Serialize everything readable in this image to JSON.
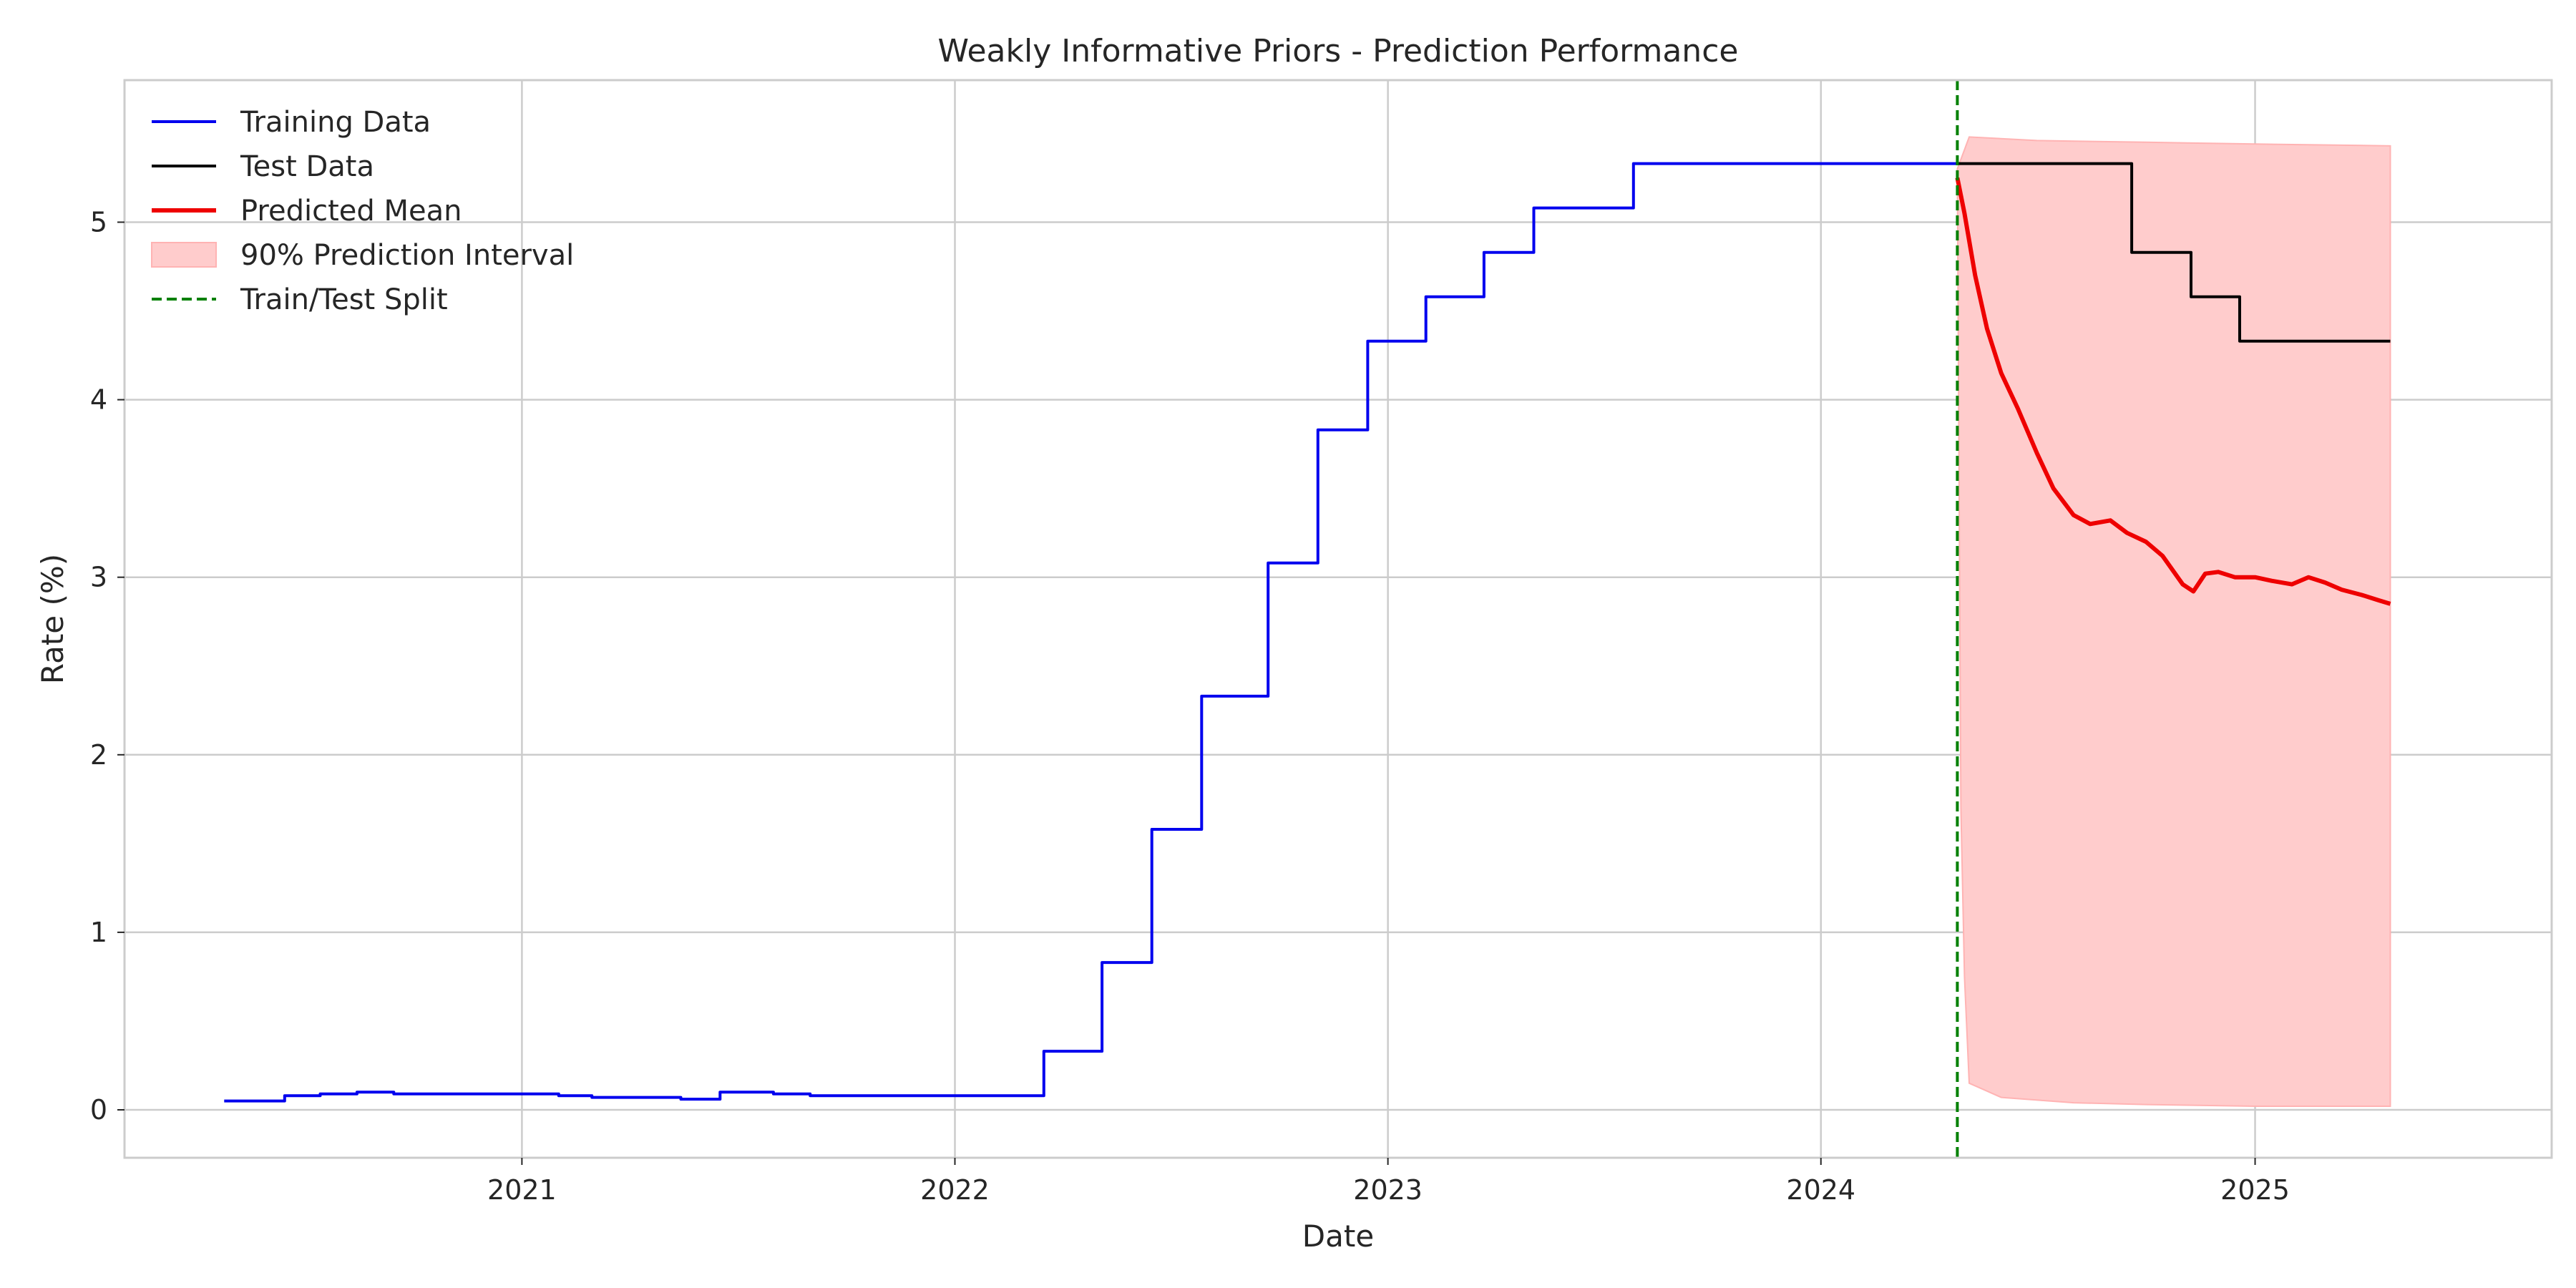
{
  "chart_data": {
    "type": "line",
    "title": "Weakly Informative Priors - Prediction Performance",
    "xlabel": "Date",
    "ylabel": "Rate (%)",
    "xlim": [
      "2020-02-01",
      "2025-09-08"
    ],
    "ylim": [
      -0.27,
      5.8
    ],
    "x_ticks": [
      {
        "date": "2021-01-01",
        "label": "2021"
      },
      {
        "date": "2022-01-01",
        "label": "2022"
      },
      {
        "date": "2023-01-01",
        "label": "2023"
      },
      {
        "date": "2024-01-01",
        "label": "2024"
      },
      {
        "date": "2025-01-01",
        "label": "2025"
      }
    ],
    "y_ticks": [
      0,
      1,
      2,
      3,
      4,
      5
    ],
    "grid": true,
    "legend_position": "top-left",
    "split_date": "2024-04-25",
    "series": [
      {
        "name": "Training Data",
        "kind": "step",
        "color": "#0000ee",
        "points": [
          [
            "2020-04-25",
            0.05
          ],
          [
            "2020-06-01",
            0.05
          ],
          [
            "2020-06-15",
            0.08
          ],
          [
            "2020-07-15",
            0.09
          ],
          [
            "2020-08-15",
            0.1
          ],
          [
            "2020-09-15",
            0.09
          ],
          [
            "2020-11-20",
            0.09
          ],
          [
            "2020-12-15",
            0.09
          ],
          [
            "2021-02-01",
            0.08
          ],
          [
            "2021-03-01",
            0.07
          ],
          [
            "2021-05-15",
            0.06
          ],
          [
            "2021-06-17",
            0.1
          ],
          [
            "2021-08-01",
            0.09
          ],
          [
            "2021-09-01",
            0.08
          ],
          [
            "2022-03-17",
            0.33
          ],
          [
            "2022-05-05",
            0.83
          ],
          [
            "2022-06-16",
            1.58
          ],
          [
            "2022-07-28",
            2.33
          ],
          [
            "2022-09-22",
            3.08
          ],
          [
            "2022-11-03",
            3.83
          ],
          [
            "2022-12-15",
            4.33
          ],
          [
            "2023-02-02",
            4.58
          ],
          [
            "2023-03-23",
            4.83
          ],
          [
            "2023-05-04",
            5.08
          ],
          [
            "2023-07-27",
            5.33
          ],
          [
            "2024-04-25",
            5.33
          ]
        ]
      },
      {
        "name": "Test Data",
        "kind": "step",
        "color": "#000000",
        "points": [
          [
            "2024-04-25",
            5.33
          ],
          [
            "2024-09-19",
            4.83
          ],
          [
            "2024-11-08",
            4.58
          ],
          [
            "2024-12-19",
            4.33
          ],
          [
            "2025-04-25",
            4.33
          ]
        ]
      },
      {
        "name": "Predicted Mean",
        "kind": "line",
        "color": "#ee0000",
        "points": [
          [
            "2024-04-25",
            5.25
          ],
          [
            "2024-05-01",
            5.05
          ],
          [
            "2024-05-10",
            4.7
          ],
          [
            "2024-05-20",
            4.4
          ],
          [
            "2024-06-01",
            4.15
          ],
          [
            "2024-06-15",
            3.95
          ],
          [
            "2024-07-01",
            3.7
          ],
          [
            "2024-07-15",
            3.5
          ],
          [
            "2024-08-01",
            3.35
          ],
          [
            "2024-08-15",
            3.3
          ],
          [
            "2024-09-01",
            3.32
          ],
          [
            "2024-09-15",
            3.25
          ],
          [
            "2024-10-01",
            3.2
          ],
          [
            "2024-10-15",
            3.12
          ],
          [
            "2024-11-01",
            2.96
          ],
          [
            "2024-11-10",
            2.92
          ],
          [
            "2024-11-20",
            3.02
          ],
          [
            "2024-12-01",
            3.03
          ],
          [
            "2024-12-15",
            3.0
          ],
          [
            "2025-01-01",
            3.0
          ],
          [
            "2025-01-15",
            2.98
          ],
          [
            "2025-02-01",
            2.96
          ],
          [
            "2025-02-15",
            3.0
          ],
          [
            "2025-03-01",
            2.97
          ],
          [
            "2025-03-15",
            2.93
          ],
          [
            "2025-04-01",
            2.9
          ],
          [
            "2025-04-15",
            2.87
          ],
          [
            "2025-04-25",
            2.85
          ]
        ]
      }
    ],
    "interval": {
      "name": "90% Prediction Interval",
      "color": "#ffcccc",
      "upper": [
        [
          "2024-04-25",
          5.3
        ],
        [
          "2024-05-05",
          5.48
        ],
        [
          "2024-07-01",
          5.46
        ],
        [
          "2024-10-01",
          5.45
        ],
        [
          "2025-01-01",
          5.44
        ],
        [
          "2025-04-25",
          5.43
        ]
      ],
      "lower": [
        [
          "2024-04-25",
          5.3
        ],
        [
          "2024-04-28",
          1.7
        ],
        [
          "2024-05-01",
          0.75
        ],
        [
          "2024-05-05",
          0.15
        ],
        [
          "2024-06-01",
          0.07
        ],
        [
          "2024-08-01",
          0.04
        ],
        [
          "2024-10-01",
          0.03
        ],
        [
          "2025-01-01",
          0.02
        ],
        [
          "2025-04-25",
          0.02
        ]
      ]
    },
    "legend": [
      {
        "label": "Training Data",
        "style": "line",
        "color": "#0000ee"
      },
      {
        "label": "Test Data",
        "style": "line",
        "color": "#000000"
      },
      {
        "label": "Predicted Mean",
        "style": "thick-line",
        "color": "#ee0000"
      },
      {
        "label": "90% Prediction Interval",
        "style": "patch",
        "color": "#ffcccc"
      },
      {
        "label": "Train/Test Split",
        "style": "dashed",
        "color": "#008000"
      }
    ]
  }
}
